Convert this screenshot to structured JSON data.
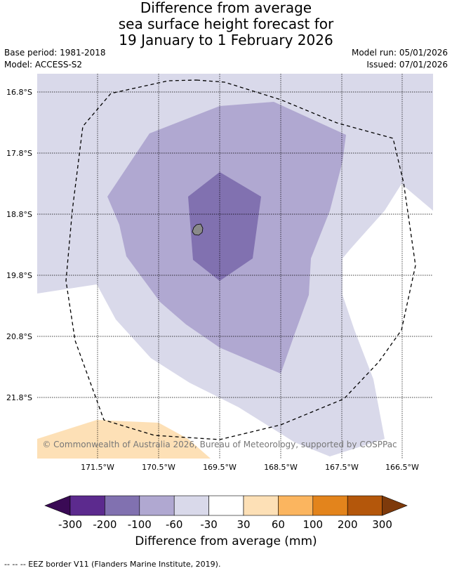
{
  "title": {
    "line1": "Difference from average",
    "line2": "sea surface height forecast for",
    "line3": "19 January to 1 February 2026"
  },
  "meta": {
    "base_period": "Base period: 1981-2018",
    "model": "Model: ACCESS-S2",
    "model_run": "Model run: 05/01/2026",
    "issued": "Issued: 07/01/2026"
  },
  "map": {
    "lat_labels": [
      "16.8°S",
      "17.8°S",
      "18.8°S",
      "19.8°S",
      "20.8°S",
      "21.8°S"
    ],
    "lon_labels": [
      "171.5°W",
      "170.5°W",
      "169.5°W",
      "168.5°W",
      "167.5°W",
      "166.5°W"
    ],
    "copyright": "© Commonwealth of Australia 2026, Bureau of Meteorology, supported by COSPPac"
  },
  "colorbar": {
    "title": "Difference from average (mm)",
    "tick_labels": [
      "-300",
      "-200",
      "-100",
      "-60",
      "-30",
      "30",
      "60",
      "100",
      "200",
      "300"
    ],
    "colors": {
      "below_min": "#3a0a55",
      "b_m300_m200": "#5c2a8e",
      "b_m200_m100": "#8171b0",
      "b_m100_m60": "#b0a8d1",
      "b_m60_m30": "#d9d9ea",
      "b_m30_30": "#ffffff",
      "b_30_60": "#fde0b6",
      "b_60_100": "#fbb55f",
      "b_100_200": "#e3841c",
      "b_200_300": "#b4570b",
      "above_max": "#7e3a0b"
    }
  },
  "footnote": "--  --  -- EEZ border V11 (Flanders Marine Institute, 2019)."
}
